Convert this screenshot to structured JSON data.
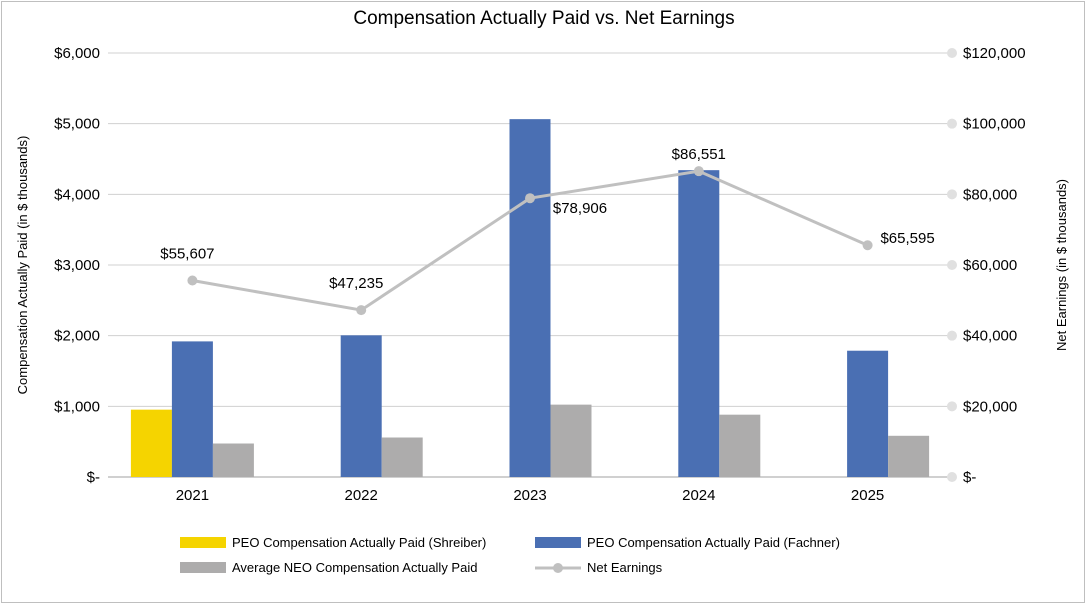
{
  "chart_data": {
    "type": "bar",
    "title": "Compensation Actually Paid vs. Net Earnings",
    "categories": [
      "2021",
      "2022",
      "2023",
      "2024",
      "2025"
    ],
    "ylabel": "Compensation Actually Paid (in $ thousands)",
    "y2label": "Net Earnings (in $ thousands)",
    "ylim": [
      0,
      6000
    ],
    "y2lim": [
      0,
      120000
    ],
    "yticks": [
      "$-",
      "$1,000",
      "$2,000",
      "$3,000",
      "$4,000",
      "$5,000",
      "$6,000"
    ],
    "y2ticks": [
      "$-",
      "$20,000",
      "$40,000",
      "$60,000",
      "$80,000",
      "$100,000",
      "$120,000"
    ],
    "grid": true,
    "legend_position": "bottom",
    "series": [
      {
        "name": "PEO Compensation Actually Paid (Shreiber)",
        "type": "bar",
        "color": "#f5d400",
        "values": [
          953,
          null,
          null,
          null,
          null
        ]
      },
      {
        "name": "PEO Compensation Actually Paid (Fachner)",
        "type": "bar",
        "color": "#4a6fb3",
        "values": [
          1919,
          2005,
          5064,
          4342,
          1787
        ]
      },
      {
        "name": "Average NEO Compensation Actually Paid",
        "type": "bar",
        "color": "#adacac",
        "values": [
          474,
          559,
          1024,
          882,
          583
        ]
      },
      {
        "name": "Net Earnings",
        "type": "line",
        "axis": "right",
        "color": "#c0c0c0",
        "values": [
          55607,
          47235,
          78906,
          86551,
          65595
        ],
        "labels": [
          "$55,607",
          "$47,235",
          "$78,906",
          "$86,551",
          "$65,595"
        ]
      }
    ]
  }
}
